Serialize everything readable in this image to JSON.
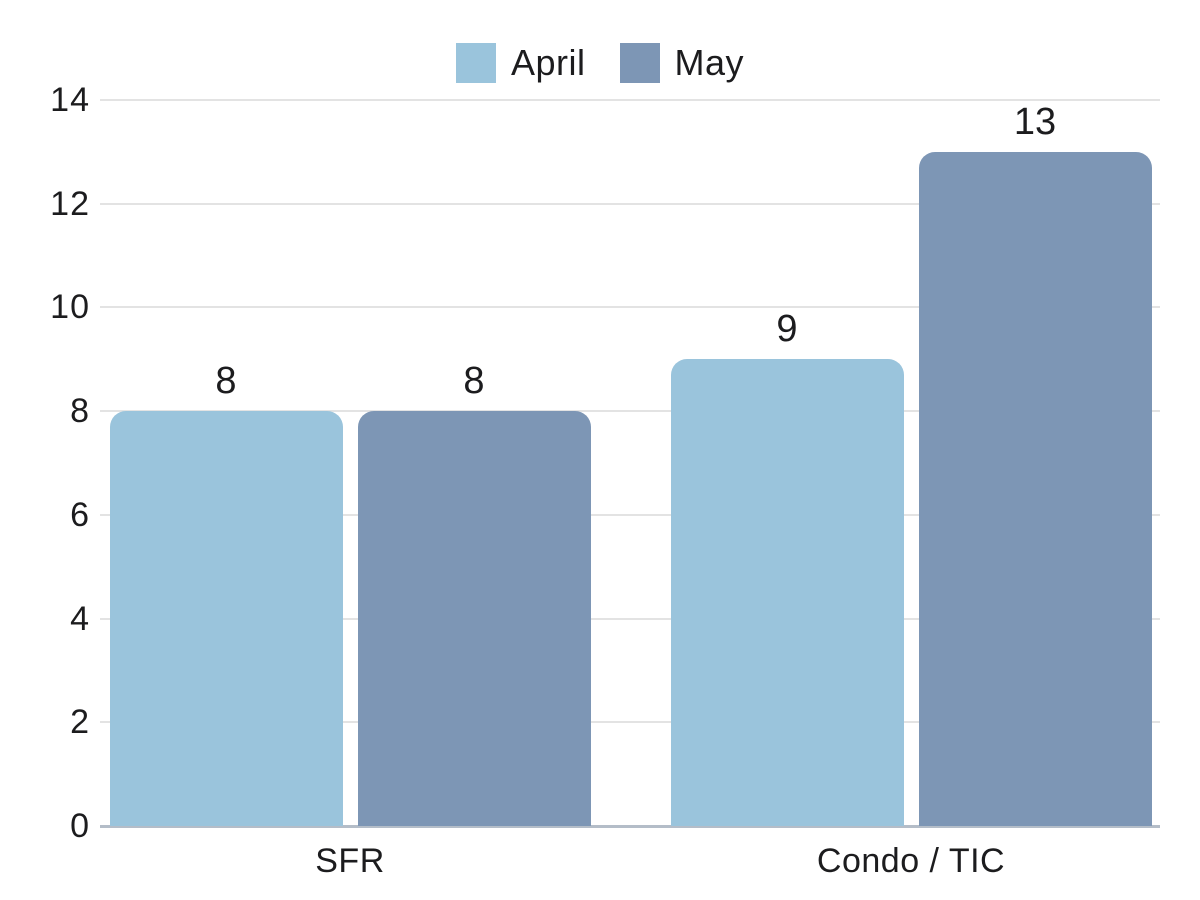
{
  "chart_data": {
    "type": "bar",
    "title": "",
    "categories": [
      "SFR",
      "Condo / TIC"
    ],
    "series": [
      {
        "name": "April",
        "color": "#9ac4dc",
        "values": [
          8,
          9
        ]
      },
      {
        "name": "May",
        "color": "#7d96b5",
        "values": [
          8,
          13
        ]
      }
    ],
    "ylim": [
      0,
      14
    ],
    "yticks": [
      0,
      2,
      4,
      6,
      8,
      10,
      12,
      14
    ],
    "grid": "horizontal",
    "legend_position": "top-center",
    "value_labels": "above-bars",
    "colors": {
      "gridline": "#e3e3e3",
      "axis_line": "#b4bdc8",
      "text": "#1c1c1e",
      "background": "#ffffff"
    }
  }
}
